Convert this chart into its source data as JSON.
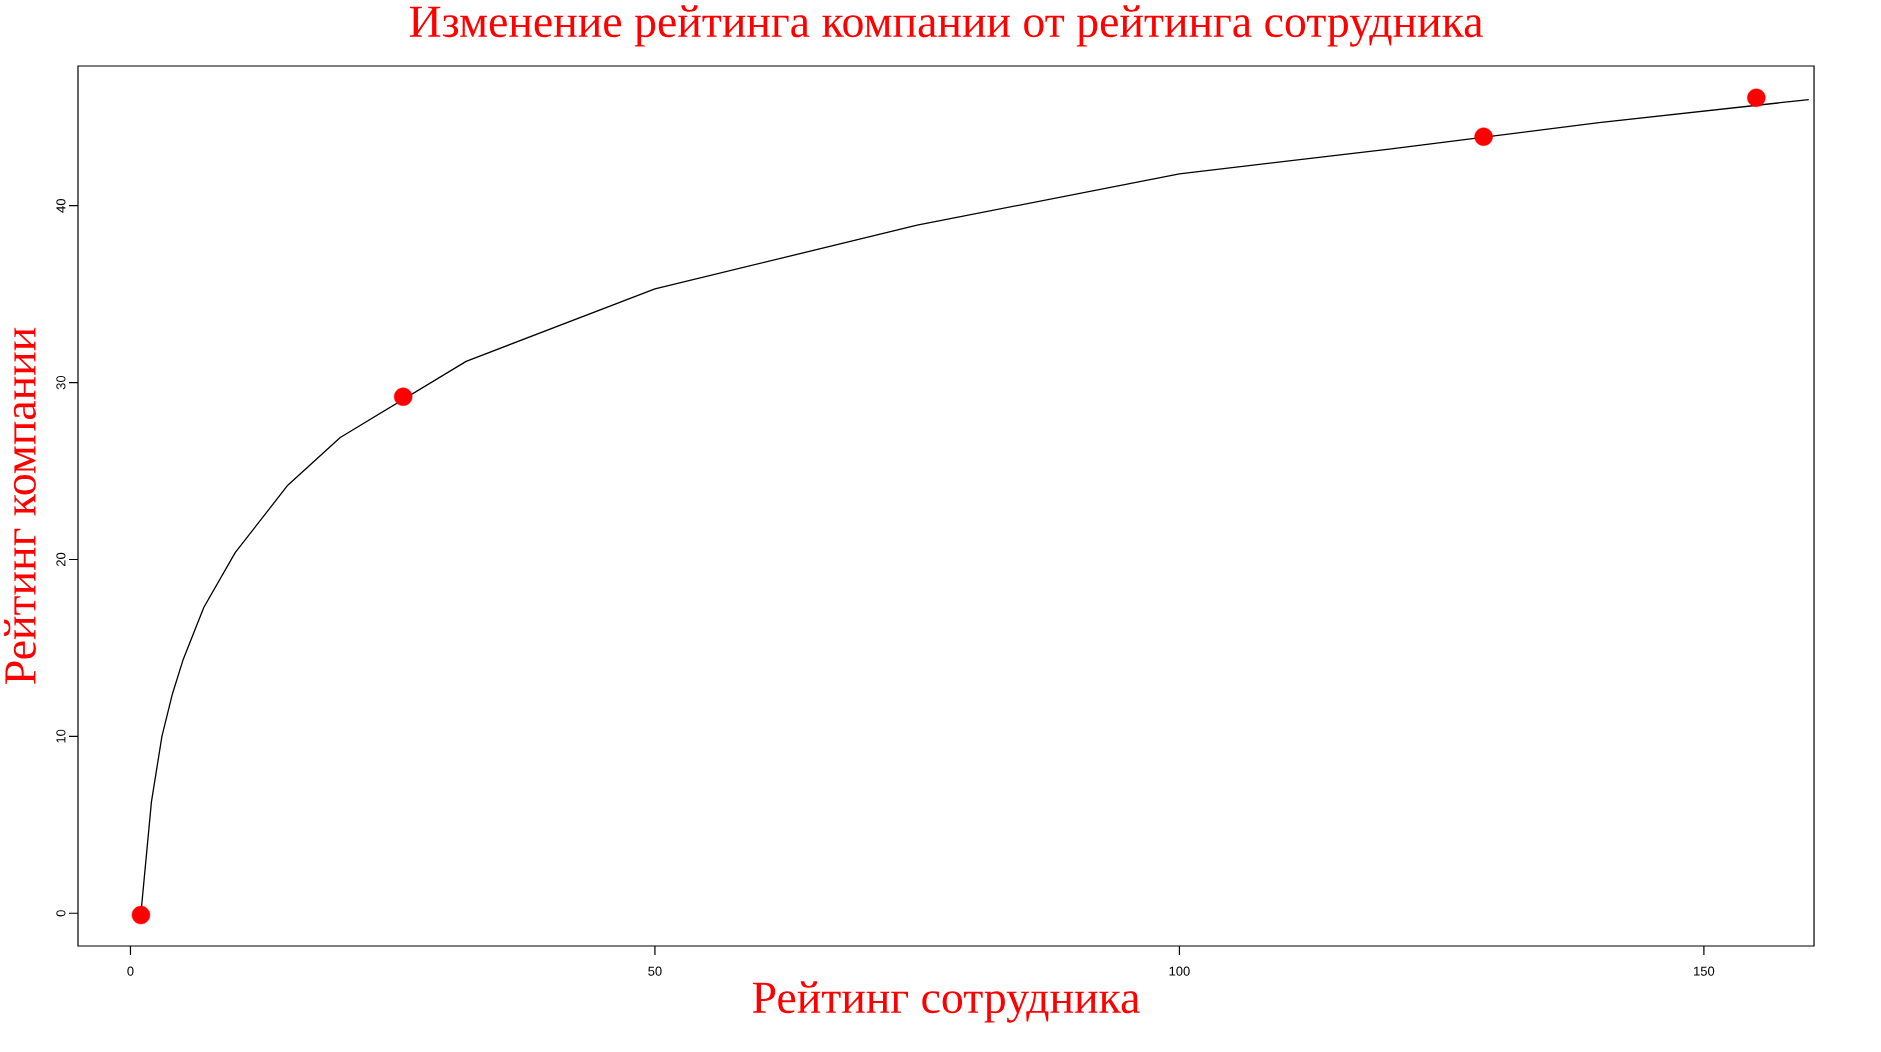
{
  "chart_data": {
    "type": "scatter",
    "title": "Изменение рейтинга компании от рейтинга сотрудника",
    "xlabel": "Рейтинг сотрудника",
    "ylabel": "Рейтинг компании",
    "xlim": [
      -5,
      160.5
    ],
    "ylim": [
      -1.85,
      47.9
    ],
    "xticks": [
      0,
      50,
      100,
      150
    ],
    "yticks": [
      0,
      10,
      20,
      30,
      40
    ],
    "grid": false,
    "series": [
      {
        "type": "line",
        "color": "#000000",
        "marker": "none",
        "line_style": "solid",
        "x": [
          1,
          2,
          3,
          4,
          5,
          7,
          10,
          15,
          20,
          32,
          50,
          75,
          100,
          120,
          140,
          160
        ],
        "values": [
          0,
          6.3,
          10,
          12.4,
          14.3,
          17.3,
          20.4,
          24.2,
          26.9,
          31.2,
          35.3,
          38.9,
          41.8,
          43.2,
          44.7,
          46
        ]
      },
      {
        "color": "#ff0000",
        "marker": "circle",
        "x": [
          1,
          26,
          129,
          155
        ],
        "values": [
          -0.1,
          29.2,
          43.9,
          46.1
        ]
      }
    ]
  }
}
